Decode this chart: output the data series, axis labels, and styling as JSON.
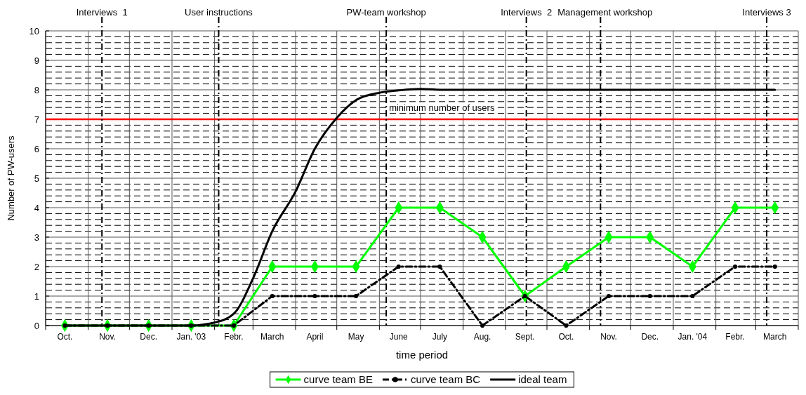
{
  "chart_data": {
    "type": "line",
    "xlabel": "time period",
    "ylabel": "Number of PW-users",
    "x": [
      "2002-10-15",
      "2002-11-15",
      "2002-12-15",
      "2003-01-15",
      "2003-02-15",
      "2003-03-15",
      "2003-04-15",
      "2003-05-15",
      "2003-06-15",
      "2003-07-15",
      "2003-08-15",
      "2003-09-15",
      "2003-10-15",
      "2003-11-15",
      "2003-12-15",
      "2004-01-15",
      "2004-02-15",
      "2004-03-15"
    ],
    "xlim": [
      "2002-10-01",
      "2004-04-01"
    ],
    "xticks": [
      {
        "value": "2002-10-01",
        "label": null
      },
      {
        "value": "2002-10-15",
        "label": "Oct."
      },
      {
        "value": "2002-11-01",
        "label": null
      },
      {
        "value": "2002-11-15",
        "label": "Nov."
      },
      {
        "value": "2002-12-01",
        "label": null
      },
      {
        "value": "2002-12-15",
        "label": "Dec."
      },
      {
        "value": "2003-01-01",
        "label": null
      },
      {
        "value": "2003-01-15",
        "label": "Jan. '03"
      },
      {
        "value": "2003-02-01",
        "label": null
      },
      {
        "value": "2003-02-15",
        "label": "Febr."
      },
      {
        "value": "2003-03-01",
        "label": null
      },
      {
        "value": "2003-03-15",
        "label": "March"
      },
      {
        "value": "2003-04-01",
        "label": null
      },
      {
        "value": "2003-04-15",
        "label": "April"
      },
      {
        "value": "2003-05-01",
        "label": null
      },
      {
        "value": "2003-05-15",
        "label": "May"
      },
      {
        "value": "2003-06-01",
        "label": null
      },
      {
        "value": "2003-06-15",
        "label": "June"
      },
      {
        "value": "2003-07-01",
        "label": null
      },
      {
        "value": "2003-07-15",
        "label": "July"
      },
      {
        "value": "2003-08-01",
        "label": null
      },
      {
        "value": "2003-08-15",
        "label": "Aug."
      },
      {
        "value": "2003-09-01",
        "label": null
      },
      {
        "value": "2003-09-15",
        "label": "Sept."
      },
      {
        "value": "2003-10-01",
        "label": null
      },
      {
        "value": "2003-10-15",
        "label": "Oct."
      },
      {
        "value": "2003-11-01",
        "label": null
      },
      {
        "value": "2003-11-15",
        "label": "Nov."
      },
      {
        "value": "2003-12-01",
        "label": null
      },
      {
        "value": "2003-12-15",
        "label": "Dec."
      },
      {
        "value": "2004-01-01",
        "label": null
      },
      {
        "value": "2004-01-15",
        "label": "Jan. '04"
      },
      {
        "value": "2004-02-01",
        "label": null
      },
      {
        "value": "2004-02-15",
        "label": "Febr."
      },
      {
        "value": "2004-03-01",
        "label": null
      },
      {
        "value": "2004-03-15",
        "label": "March"
      },
      {
        "value": "2004-04-01",
        "label": null
      }
    ],
    "ylim": [
      0,
      10
    ],
    "yticks": [
      0,
      1,
      2,
      3,
      4,
      5,
      6,
      7,
      8,
      9,
      10,
      {
        "value": 0.2,
        "label": null
      },
      {
        "value": 0.4,
        "label": null
      },
      {
        "value": 0.6,
        "label": null
      },
      {
        "value": 0.8,
        "label": null
      },
      {
        "value": 1.2,
        "label": null
      },
      {
        "value": 1.4,
        "label": null
      },
      {
        "value": 1.6,
        "label": null
      },
      {
        "value": 1.8,
        "label": null
      },
      {
        "value": 2.2,
        "label": null
      },
      {
        "value": 2.4,
        "label": null
      },
      {
        "value": 2.6,
        "label": null
      },
      {
        "value": 2.8,
        "label": null
      },
      {
        "value": 3.2,
        "label": null
      },
      {
        "value": 3.4,
        "label": null
      },
      {
        "value": 3.6,
        "label": null
      },
      {
        "value": 3.8,
        "label": null
      },
      {
        "value": 4.2,
        "label": null
      },
      {
        "value": 4.4,
        "label": null
      },
      {
        "value": 4.6,
        "label": null
      },
      {
        "value": 4.8,
        "label": null
      },
      {
        "value": 5.2,
        "label": null
      },
      {
        "value": 5.4,
        "label": null
      },
      {
        "value": 5.6,
        "label": null
      },
      {
        "value": 5.8,
        "label": null
      },
      {
        "value": 6.2,
        "label": null
      },
      {
        "value": 6.4,
        "label": null
      },
      {
        "value": 6.6,
        "label": null
      },
      {
        "value": 6.8,
        "label": null
      },
      {
        "value": 7.2,
        "label": null
      },
      {
        "value": 7.4,
        "label": null
      },
      {
        "value": 7.6,
        "label": null
      },
      {
        "value": 7.8,
        "label": null
      },
      {
        "value": 8.2,
        "label": null
      },
      {
        "value": 8.4,
        "label": null
      },
      {
        "value": 8.6,
        "label": null
      },
      {
        "value": 8.8,
        "label": null
      },
      {
        "value": 9.2,
        "label": null
      },
      {
        "value": 9.4,
        "label": null
      },
      {
        "value": 9.6,
        "label": null
      },
      {
        "value": 9.8,
        "label": null
      }
    ],
    "grid": true,
    "legend": "bottom",
    "series": [
      {
        "name": "curve team BE",
        "color": "#00ff00",
        "marker": "diamond",
        "line_style": "solid",
        "values": [
          0,
          0,
          0,
          0,
          0,
          2,
          2,
          2,
          4,
          4,
          3,
          1,
          2,
          3,
          3,
          2,
          4,
          4
        ]
      },
      {
        "name": "curve team BC",
        "color": "#000000",
        "marker": "circle",
        "line_style": "dashed",
        "values": [
          0,
          0,
          0,
          0,
          0,
          1,
          1,
          1,
          2,
          2,
          0,
          1,
          0,
          1,
          1,
          1,
          2,
          2
        ]
      },
      {
        "name": "ideal team",
        "color": "#000000",
        "marker": "none",
        "line_style": "solid",
        "x": [
          "2002-10-15",
          "2002-11-15",
          "2002-12-15",
          "2003-01-15",
          "2003-02-01",
          "2003-02-15",
          "2003-03-01",
          "2003-03-15",
          "2003-04-01",
          "2003-04-15",
          "2003-05-01",
          "2003-05-15",
          "2003-06-01",
          "2003-06-15",
          "2003-07-01",
          "2003-07-15",
          "2003-08-15",
          "2003-09-15",
          "2003-10-15",
          "2003-11-15",
          "2003-12-15",
          "2004-01-15",
          "2004-02-15",
          "2004-03-15"
        ],
        "values": [
          0,
          0,
          0,
          0,
          0.1,
          0.4,
          1.6,
          3.2,
          4.55,
          6,
          7.05,
          7.65,
          7.9,
          7.98,
          8.03,
          8,
          8,
          8,
          8,
          8,
          8,
          8,
          8,
          8
        ]
      }
    ],
    "ref_lines": [
      {
        "axis": "y",
        "value": 7,
        "label": "minimum number of users",
        "color": "#ff0000",
        "line_style": "solid"
      },
      {
        "axis": "x",
        "value": "2002-11-11",
        "label": "Interviews  1",
        "color": "#000000",
        "line_style": "dashed"
      },
      {
        "axis": "x",
        "value": "2003-02-04",
        "label": "User instructions",
        "color": "#000000",
        "line_style": "dashed"
      },
      {
        "axis": "x",
        "value": "2003-06-06",
        "label": "PW-team workshop",
        "color": "#000000",
        "line_style": "dashed"
      },
      {
        "axis": "x",
        "value": "2003-09-16",
        "label": "Interviews  2",
        "color": "#000000",
        "line_style": "dashed"
      },
      {
        "axis": "x",
        "value": "2003-11-09",
        "label": "Management workshop",
        "color": "#000000",
        "line_style": "dashed"
      },
      {
        "axis": "x",
        "value": "2004-03-09",
        "label": "Interviews 3",
        "color": "#000000",
        "line_style": "dashed"
      }
    ]
  }
}
